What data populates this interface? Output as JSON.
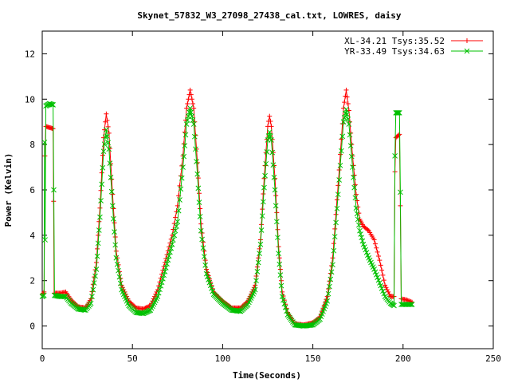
{
  "chart_data": {
    "type": "line",
    "title": "Skynet_57832_W3_27098_27438_cal.txt, LOWRES, daisy",
    "xlabel": "Time(Seconds)",
    "ylabel": "Power (Kelvin)",
    "xlim": [
      0,
      250
    ],
    "ylim": [
      -1,
      13
    ],
    "xticks": [
      0,
      50,
      100,
      150,
      200,
      250
    ],
    "yticks": [
      0,
      2,
      4,
      6,
      8,
      10,
      12
    ],
    "grid": false,
    "legend_position": "top-right",
    "series": [
      {
        "name": "XL-34.21 Tsys:35.52",
        "color": "#ff0000",
        "marker": "plus",
        "points": [
          [
            0,
            1.4
          ],
          [
            1,
            1.5
          ],
          [
            1.5,
            7.5
          ],
          [
            2,
            8.8
          ],
          [
            4,
            8.75
          ],
          [
            6,
            8.7
          ],
          [
            6.3,
            5.5
          ],
          [
            6.6,
            1.45
          ],
          [
            10,
            1.45
          ],
          [
            13,
            1.5
          ],
          [
            16,
            1.15
          ],
          [
            20,
            0.85
          ],
          [
            24,
            0.8
          ],
          [
            27,
            1.2
          ],
          [
            30,
            2.8
          ],
          [
            32,
            5.2
          ],
          [
            34,
            8.3
          ],
          [
            35.5,
            9.35
          ],
          [
            37,
            8.5
          ],
          [
            39,
            5.8
          ],
          [
            41,
            3.3
          ],
          [
            44,
            1.8
          ],
          [
            48,
            1.1
          ],
          [
            52,
            0.8
          ],
          [
            56,
            0.75
          ],
          [
            60,
            0.9
          ],
          [
            64,
            1.6
          ],
          [
            68,
            2.8
          ],
          [
            72,
            4.0
          ],
          [
            75,
            5.3
          ],
          [
            78,
            7.5
          ],
          [
            80,
            9.6
          ],
          [
            82,
            10.4
          ],
          [
            84,
            9.6
          ],
          [
            86,
            7.2
          ],
          [
            88,
            4.5
          ],
          [
            91,
            2.5
          ],
          [
            95,
            1.5
          ],
          [
            100,
            1.1
          ],
          [
            105,
            0.8
          ],
          [
            110,
            0.8
          ],
          [
            114,
            1.1
          ],
          [
            118,
            1.8
          ],
          [
            121,
            3.8
          ],
          [
            123,
            6.5
          ],
          [
            125,
            8.8
          ],
          [
            126,
            9.25
          ],
          [
            127,
            8.8
          ],
          [
            129,
            6.5
          ],
          [
            131,
            3.5
          ],
          [
            133,
            1.5
          ],
          [
            136,
            0.6
          ],
          [
            140,
            0.1
          ],
          [
            145,
            0.05
          ],
          [
            150,
            0.15
          ],
          [
            154,
            0.4
          ],
          [
            158,
            1.3
          ],
          [
            161,
            3.0
          ],
          [
            164,
            6.2
          ],
          [
            167,
            9.6
          ],
          [
            168.5,
            10.4
          ],
          [
            170,
            9.5
          ],
          [
            172,
            7.5
          ],
          [
            174,
            5.8
          ],
          [
            176,
            4.7
          ],
          [
            178,
            4.4
          ],
          [
            181,
            4.2
          ],
          [
            184,
            3.8
          ],
          [
            187,
            2.9
          ],
          [
            190,
            1.8
          ],
          [
            193,
            1.3
          ],
          [
            195,
            1.3
          ],
          [
            195.5,
            6.8
          ],
          [
            196,
            8.3
          ],
          [
            198,
            8.45
          ],
          [
            198.5,
            5.3
          ],
          [
            199,
            1.2
          ],
          [
            202,
            1.15
          ],
          [
            205,
            1.05
          ]
        ]
      },
      {
        "name": "YR-33.49 Tsys:34.63",
        "color": "#00c000",
        "marker": "cross",
        "points": [
          [
            0,
            1.3
          ],
          [
            1,
            1.35
          ],
          [
            1.3,
            8.1
          ],
          [
            1.6,
            3.8
          ],
          [
            2,
            9.7
          ],
          [
            4,
            9.8
          ],
          [
            6,
            9.75
          ],
          [
            6.4,
            6.0
          ],
          [
            6.8,
            1.35
          ],
          [
            10,
            1.3
          ],
          [
            13,
            1.3
          ],
          [
            16,
            1.0
          ],
          [
            20,
            0.75
          ],
          [
            24,
            0.7
          ],
          [
            27,
            1.0
          ],
          [
            30,
            2.5
          ],
          [
            32,
            4.8
          ],
          [
            34,
            7.7
          ],
          [
            35.5,
            8.65
          ],
          [
            37,
            7.8
          ],
          [
            39,
            5.3
          ],
          [
            41,
            3.0
          ],
          [
            44,
            1.6
          ],
          [
            48,
            0.9
          ],
          [
            52,
            0.6
          ],
          [
            56,
            0.55
          ],
          [
            60,
            0.7
          ],
          [
            64,
            1.3
          ],
          [
            68,
            2.4
          ],
          [
            72,
            3.6
          ],
          [
            75,
            4.6
          ],
          [
            78,
            7.0
          ],
          [
            80,
            8.9
          ],
          [
            82,
            9.6
          ],
          [
            84,
            8.9
          ],
          [
            86,
            6.7
          ],
          [
            88,
            4.2
          ],
          [
            91,
            2.3
          ],
          [
            95,
            1.4
          ],
          [
            100,
            1.0
          ],
          [
            105,
            0.7
          ],
          [
            110,
            0.65
          ],
          [
            114,
            0.95
          ],
          [
            118,
            1.6
          ],
          [
            121,
            3.6
          ],
          [
            123,
            6.1
          ],
          [
            125,
            8.2
          ],
          [
            126,
            8.55
          ],
          [
            127,
            8.2
          ],
          [
            129,
            6.0
          ],
          [
            131,
            3.2
          ],
          [
            133,
            1.3
          ],
          [
            136,
            0.5
          ],
          [
            140,
            0.05
          ],
          [
            145,
            0.0
          ],
          [
            150,
            0.05
          ],
          [
            154,
            0.3
          ],
          [
            158,
            1.1
          ],
          [
            161,
            2.7
          ],
          [
            164,
            5.8
          ],
          [
            167,
            9.0
          ],
          [
            168.5,
            9.55
          ],
          [
            170,
            8.9
          ],
          [
            172,
            7.0
          ],
          [
            174,
            5.2
          ],
          [
            176,
            4.2
          ],
          [
            178,
            3.6
          ],
          [
            181,
            3.0
          ],
          [
            184,
            2.5
          ],
          [
            187,
            1.9
          ],
          [
            190,
            1.3
          ],
          [
            193,
            1.0
          ],
          [
            195,
            0.9
          ],
          [
            195.5,
            7.5
          ],
          [
            196,
            9.4
          ],
          [
            198,
            9.4
          ],
          [
            198.5,
            5.9
          ],
          [
            199,
            0.95
          ],
          [
            202,
            0.95
          ],
          [
            205,
            0.95
          ]
        ]
      }
    ]
  }
}
